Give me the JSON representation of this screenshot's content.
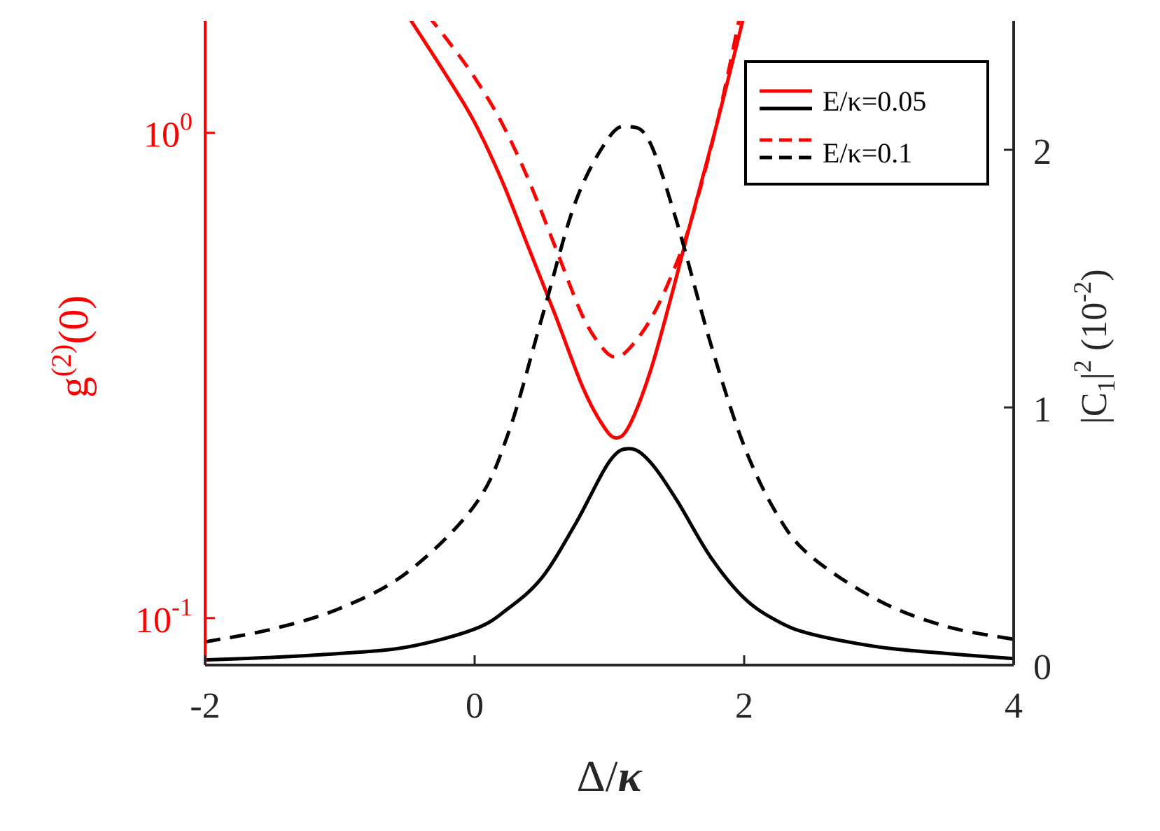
{
  "chart_data": {
    "type": "line",
    "xlabel": {
      "main": "Δ/",
      "greek": "κ"
    },
    "ylabel_left": {
      "base": "g",
      "sup": "(2)",
      "tail": "(0)"
    },
    "ylabel_right": {
      "pre": "|C",
      "sub": "1",
      "mid": "|",
      "sup": "2",
      "post": " (10",
      "exp": "-2",
      "close": ")"
    },
    "xlim": [
      -2,
      4
    ],
    "xticks": [
      "-2",
      "0",
      "2",
      "4"
    ],
    "ylim_left": [
      0.08,
      1.7
    ],
    "yscale_left": "log",
    "yticks_left": [
      {
        "base": "10",
        "exp": "-1"
      },
      {
        "base": "10",
        "exp": "0"
      }
    ],
    "ylim_right": [
      0,
      2.5
    ],
    "yticks_right": [
      "0",
      "1",
      "2"
    ],
    "grid": false,
    "legend_position": "top-right",
    "legend": [
      {
        "label": "E/κ=0.05",
        "axis": "left",
        "color": "#ff0000",
        "style": "solid"
      },
      {
        "label": "",
        "axis": "right",
        "color": "#000000",
        "style": "solid"
      },
      {
        "label": "E/κ=0.1",
        "axis": "left",
        "color": "#ff0000",
        "style": "dashed"
      },
      {
        "label": "",
        "axis": "right",
        "color": "#000000",
        "style": "dashed"
      }
    ],
    "series": [
      {
        "axis": "left",
        "color": "#ff0000",
        "style": "solid",
        "x": [
          -0.5,
          -0.2,
          0.0,
          0.2,
          0.4,
          0.6,
          0.8,
          0.95,
          1.05,
          1.15,
          1.3,
          1.45,
          1.6,
          1.8,
          2.0
        ],
        "y": [
          1.75,
          1.3,
          1.05,
          0.8,
          0.58,
          0.42,
          0.3,
          0.25,
          0.235,
          0.25,
          0.32,
          0.45,
          0.65,
          1.05,
          1.75
        ]
      },
      {
        "axis": "left",
        "color": "#ff0000",
        "style": "dashed",
        "x": [
          -0.35,
          -0.2,
          0.0,
          0.2,
          0.4,
          0.6,
          0.8,
          0.95,
          1.05,
          1.15,
          1.3,
          1.45,
          1.6,
          1.8,
          1.97
        ],
        "y": [
          1.75,
          1.55,
          1.3,
          1.05,
          0.8,
          0.58,
          0.42,
          0.36,
          0.345,
          0.36,
          0.41,
          0.5,
          0.65,
          1.05,
          1.75
        ]
      },
      {
        "axis": "right",
        "color": "#000000",
        "style": "solid",
        "x": [
          -2.0,
          -1.5,
          -1.0,
          -0.5,
          0.0,
          0.25,
          0.5,
          0.75,
          1.0,
          1.15,
          1.3,
          1.5,
          1.75,
          2.0,
          2.25,
          2.5,
          3.0,
          3.5,
          4.0
        ],
        "y": [
          0.02,
          0.03,
          0.045,
          0.07,
          0.14,
          0.22,
          0.34,
          0.55,
          0.79,
          0.84,
          0.79,
          0.64,
          0.42,
          0.26,
          0.17,
          0.12,
          0.07,
          0.045,
          0.025
        ]
      },
      {
        "axis": "right",
        "color": "#000000",
        "style": "dashed",
        "x": [
          -2.0,
          -1.5,
          -1.0,
          -0.5,
          0.0,
          0.25,
          0.5,
          0.75,
          1.0,
          1.15,
          1.3,
          1.5,
          1.75,
          2.0,
          2.25,
          2.5,
          3.0,
          3.5,
          4.0
        ],
        "y": [
          0.09,
          0.14,
          0.22,
          0.36,
          0.62,
          0.9,
          1.35,
          1.8,
          2.05,
          2.09,
          2.03,
          1.72,
          1.25,
          0.85,
          0.58,
          0.42,
          0.25,
          0.15,
          0.1
        ]
      }
    ]
  }
}
